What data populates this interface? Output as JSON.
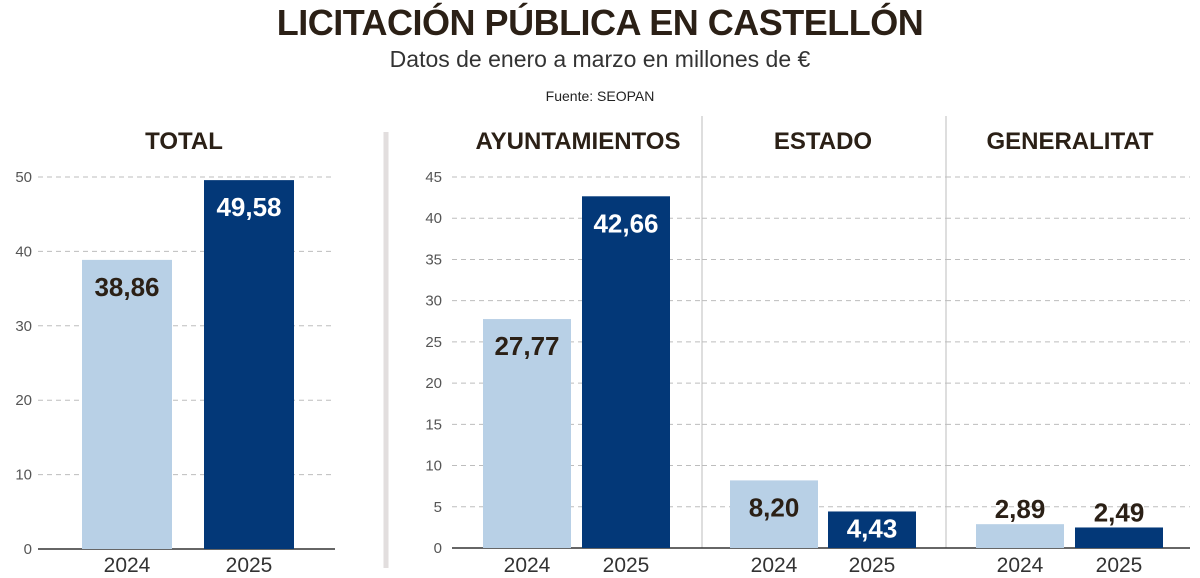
{
  "header": {
    "title": "LICITACIÓN PÚBLICA EN CASTELLÓN",
    "subtitle": "Datos de enero a marzo en millones de €",
    "source": "Fuente: SEOPAN"
  },
  "colors": {
    "y2024": "#b8d0e6",
    "y2025": "#033878",
    "grid": "#bdbdbd",
    "axis": "#333333",
    "divider": "#e2dede",
    "label_dark": "#2b2016",
    "label_light": "#ffffff"
  },
  "chart_data": [
    {
      "type": "bar",
      "title": "TOTAL",
      "categories": [
        "2024",
        "2025"
      ],
      "values": [
        38.86,
        49.58
      ],
      "labels": [
        "38,86",
        "49,58"
      ],
      "ylim": [
        0,
        50
      ],
      "yticks": [
        0,
        10,
        20,
        30,
        40,
        50
      ],
      "grid": true
    },
    {
      "type": "bar",
      "title": "AYUNTAMIENTOS",
      "categories": [
        "2024",
        "2025"
      ],
      "values": [
        27.77,
        42.66
      ],
      "labels": [
        "27,77",
        "42,66"
      ],
      "ylim": [
        0,
        45
      ],
      "yticks": [
        0,
        5,
        10,
        15,
        20,
        25,
        30,
        35,
        40,
        45
      ],
      "grid": true
    },
    {
      "type": "bar",
      "title": "ESTADO",
      "categories": [
        "2024",
        "2025"
      ],
      "values": [
        8.2,
        4.43
      ],
      "labels": [
        "8,20",
        "4,43"
      ],
      "ylim": [
        0,
        45
      ],
      "grid": true
    },
    {
      "type": "bar",
      "title": "GENERALITAT",
      "categories": [
        "2024",
        "2025"
      ],
      "values": [
        2.89,
        2.49
      ],
      "labels": [
        "2,89",
        "2,49"
      ],
      "ylim": [
        0,
        45
      ],
      "grid": true
    }
  ]
}
